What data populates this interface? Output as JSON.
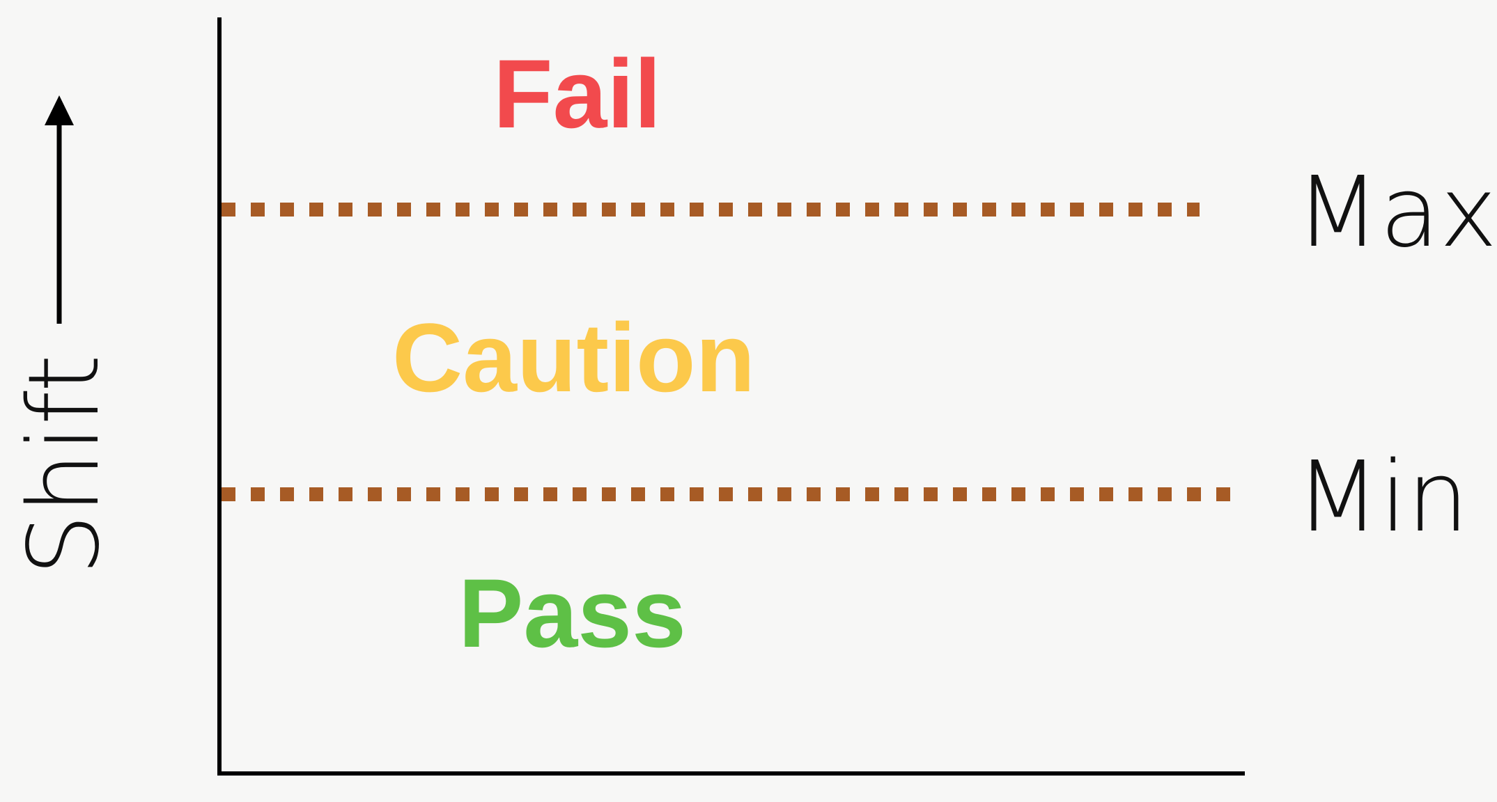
{
  "axis": {
    "y_label": "Shift"
  },
  "thresholds": [
    {
      "label": "Max"
    },
    {
      "label": "Min"
    }
  ],
  "zones": [
    {
      "label": "Fail",
      "color": "#f24a4d"
    },
    {
      "label": "Caution",
      "color": "#fcc94b"
    },
    {
      "label": "Pass",
      "color": "#5ec046"
    }
  ],
  "colors": {
    "axis": "#000000",
    "threshold_line": "#a75b25",
    "background": "#f7f7f6"
  }
}
